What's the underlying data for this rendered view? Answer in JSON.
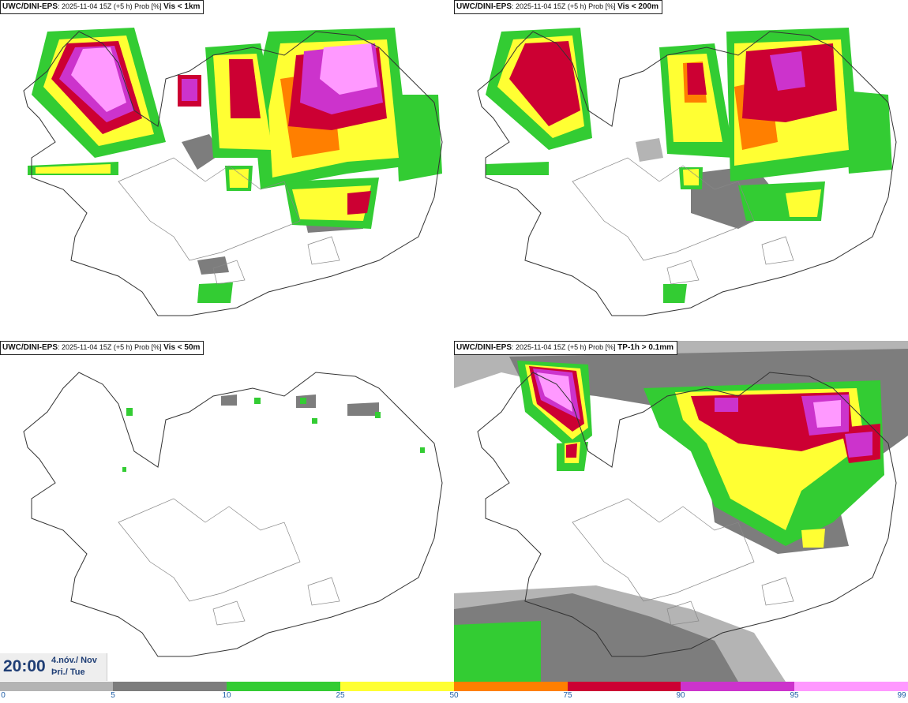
{
  "panels": [
    {
      "model": "UWC/DINI-EPS",
      "run": ": 2025-11-04 15Z (+5 h) Prob [%]",
      "variable": "Vis < 1km"
    },
    {
      "model": "UWC/DINI-EPS",
      "run": ": 2025-11-04 15Z (+5 h) Prob [%]",
      "variable": "Vis < 200m"
    },
    {
      "model": "UWC/DINI-EPS",
      "run": ": 2025-11-04 15Z (+5 h) Prob [%]",
      "variable": "Vis < 50m"
    },
    {
      "model": "UWC/DINI-EPS",
      "run": ": 2025-11-04 15Z (+5 h) Prob [%]",
      "variable": "TP-1h > 0.1mm"
    }
  ],
  "timebox": {
    "time": "20:00",
    "date": "4.nóv./ Nov",
    "day": "Þri./ Tue"
  },
  "colorbar": {
    "ticks": [
      "0",
      "5",
      "10",
      "25",
      "50",
      "75",
      "90",
      "95",
      "99"
    ],
    "colors": [
      "#ffffff",
      "#b4b4b4",
      "#7d7d7d",
      "#33cc33",
      "#ffff33",
      "#ff7f00",
      "#cc0033",
      "#cc33cc",
      "#ff99ff"
    ]
  },
  "colors": {
    "gray_light": "#b4b4b4",
    "gray_dark": "#7d7d7d",
    "green": "#33cc33",
    "yellow": "#ffff33",
    "orange": "#ff7f00",
    "red": "#cc0033",
    "magenta": "#cc33cc",
    "pink": "#ff99ff"
  }
}
